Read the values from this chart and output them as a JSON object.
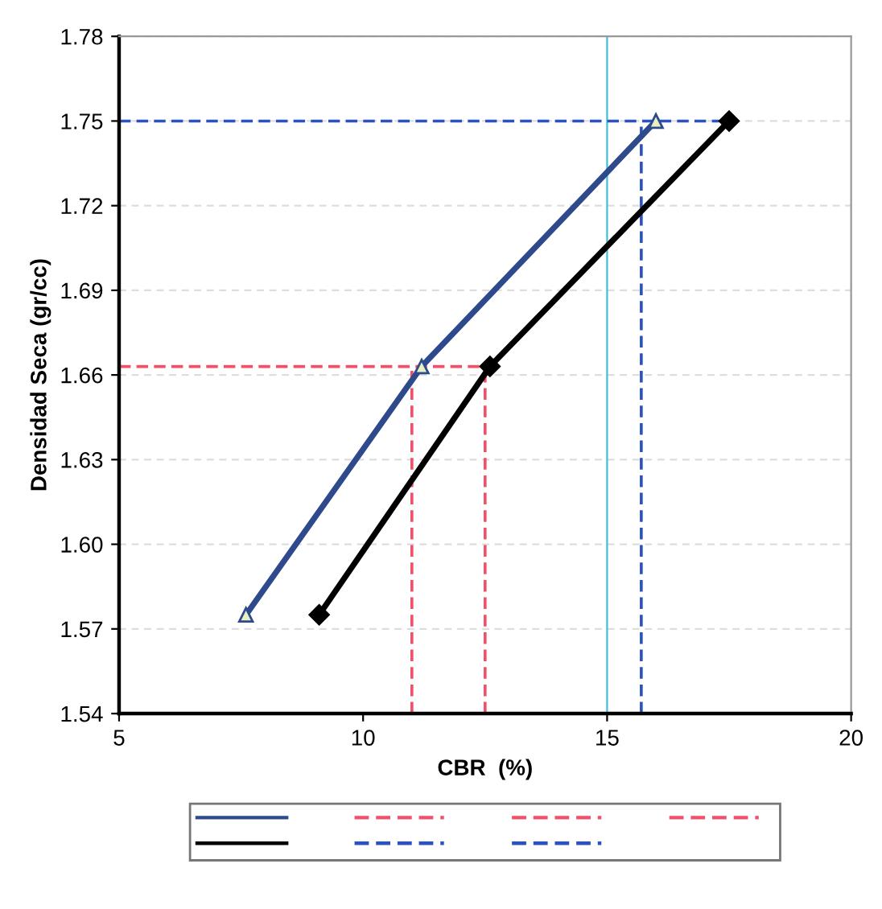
{
  "chart_data": {
    "type": "line",
    "xlabel": "CBR  (%)",
    "ylabel": "Densidad Seca (gr/cc)",
    "xlim": [
      5,
      20
    ],
    "xticks": [
      5,
      10,
      15,
      20
    ],
    "ylim": [
      1.54,
      1.78
    ],
    "yticks": [
      1.54,
      1.57,
      {
        "value": 1.6,
        "label": "1.60"
      },
      1.63,
      1.66,
      1.69,
      1.72,
      1.75,
      1.78
    ],
    "grid": "y",
    "series": [
      {
        "color": "#2e4a8c",
        "x": [
          7.6,
          11.2,
          16.0
        ],
        "values": [
          1.575,
          1.663,
          1.75
        ],
        "marker": "triangle",
        "line_style": "solid"
      },
      {
        "color": "#000000",
        "x": [
          9.1,
          12.6,
          17.5
        ],
        "values": [
          1.575,
          1.663,
          1.75
        ],
        "marker": "diamond",
        "line_style": "solid"
      },
      {
        "color": "#f0506a",
        "x": [
          5,
          12.5
        ],
        "values": [
          1.663,
          1.663
        ],
        "marker": "none",
        "line_style": "dashed"
      },
      {
        "color": "#2a52c0",
        "x": [
          5,
          17.3
        ],
        "values": [
          1.75,
          1.75
        ],
        "marker": "none",
        "line_style": "dashed"
      },
      {
        "color": "#f0506a",
        "x": [
          11.0,
          11.0
        ],
        "values": [
          1.54,
          1.663
        ],
        "marker": "none",
        "line_style": "dashed"
      },
      {
        "color": "#2a52c0",
        "x": [
          15.7,
          15.7
        ],
        "values": [
          1.54,
          1.75
        ],
        "marker": "none",
        "line_style": "dashed"
      },
      {
        "color": "#f0506a",
        "x": [
          12.5,
          12.5
        ],
        "values": [
          1.54,
          1.663
        ],
        "marker": "none",
        "line_style": "dashed"
      }
    ],
    "ref_lines": [
      {
        "axis": "x",
        "value": 15,
        "color": "#40c0d8",
        "line_style": "solid"
      }
    ]
  }
}
